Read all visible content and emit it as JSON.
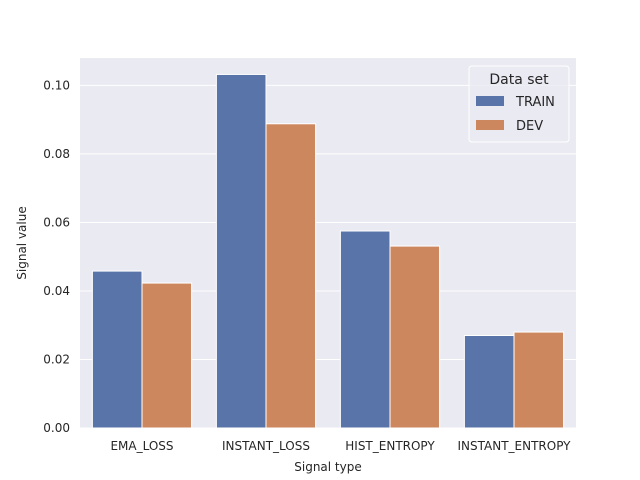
{
  "chart_data": {
    "type": "bar",
    "title": "",
    "xlabel": "Signal type",
    "ylabel": "Signal value",
    "categories": [
      "EMA_LOSS",
      "INSTANT_LOSS",
      "HIST_ENTROPY",
      "INSTANT_ENTROPY"
    ],
    "series": [
      {
        "name": "TRAIN",
        "color": "#5874a8",
        "values": [
          0.0458,
          0.1032,
          0.0575,
          0.027
        ]
      },
      {
        "name": "DEV",
        "color": "#cd875f",
        "values": [
          0.0423,
          0.0888,
          0.0531,
          0.028
        ]
      }
    ],
    "ylim": [
      0,
      0.108
    ],
    "yticks": [
      0.0,
      0.02,
      0.04,
      0.06,
      0.08,
      0.1
    ],
    "ytick_labels": [
      "0.00",
      "0.02",
      "0.04",
      "0.06",
      "0.08",
      "0.10"
    ],
    "grid": true,
    "background": "#eaeaf2",
    "legend": {
      "title": "Data set",
      "placement": "top-right"
    }
  }
}
